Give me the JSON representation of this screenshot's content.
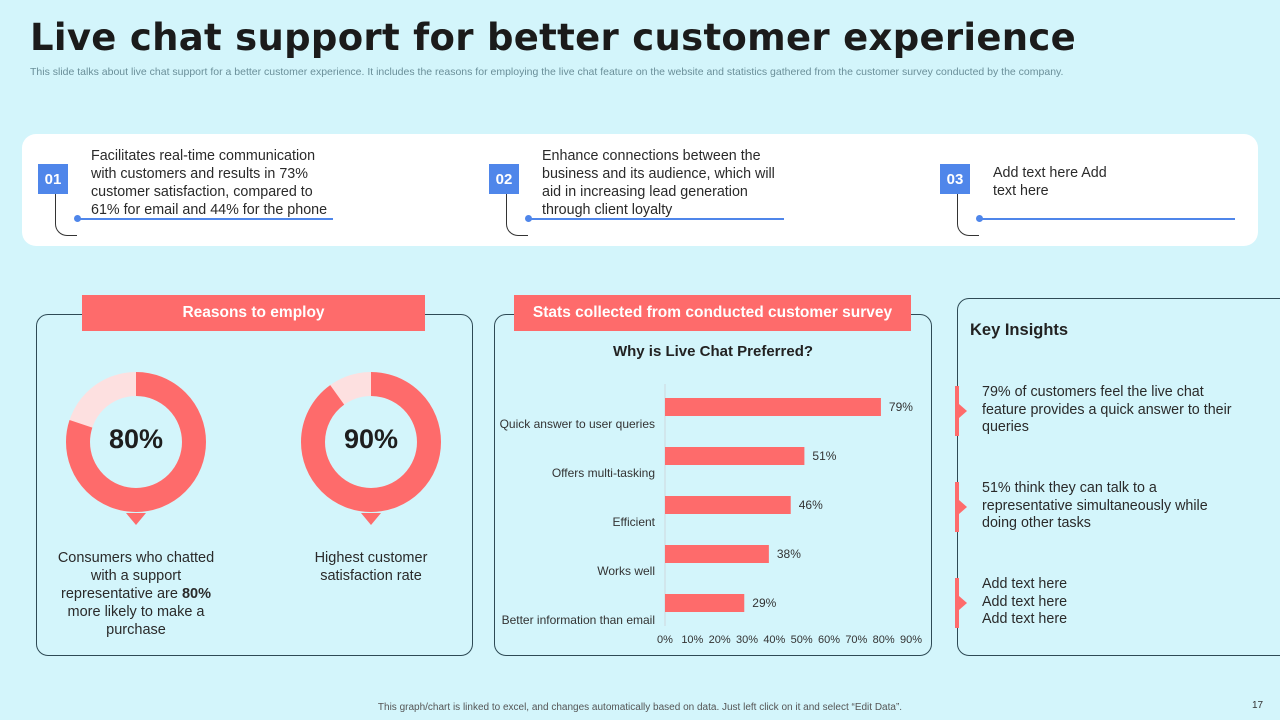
{
  "title": "Live chat support for better customer experience",
  "subtitle": "This slide talks about live chat support for a better customer experience. It includes the reasons for employing the live chat feature on the website and statistics gathered from the customer survey conducted by the company.",
  "steps": [
    {
      "num": "01",
      "text": "Facilitates real-time communication with customers and results in 73% customer satisfaction, compared to 61% for email and 44% for the phone"
    },
    {
      "num": "02",
      "text": "Enhance connections between the business and its audience, which will aid in increasing lead generation through client loyalty"
    },
    {
      "num": "03",
      "text": "Add text here Add text here"
    }
  ],
  "reasons": {
    "heading": "Reasons to employ",
    "donuts": [
      {
        "label": "80%",
        "value": 80,
        "desc_before": "Consumers who chatted with a support representative are ",
        "desc_bold": "80%",
        "desc_after": " more likely to make a purchase"
      },
      {
        "label": "90%",
        "value": 90,
        "desc": "Highest customer satisfaction rate"
      }
    ]
  },
  "stats": {
    "heading": "Stats collected from conducted customer survey"
  },
  "chart_data": {
    "type": "bar",
    "orientation": "horizontal",
    "title": "Why is Live Chat Preferred?",
    "categories": [
      "Quick answer to user queries",
      "Offers multi-tasking",
      "Efficient",
      "Works well",
      "Better information than email"
    ],
    "values": [
      79,
      51,
      46,
      38,
      29
    ],
    "value_labels": [
      "79%",
      "51%",
      "46%",
      "38%",
      "29%"
    ],
    "xlim": [
      0,
      90
    ],
    "xticks": [
      "0%",
      "10%",
      "20%",
      "30%",
      "40%",
      "50%",
      "60%",
      "70%",
      "80%",
      "90%"
    ],
    "bar_color": "#fe6b6b"
  },
  "insights": {
    "heading": "Key Insights",
    "items": [
      "79% of customers feel the live chat feature provides a quick answer to their queries",
      "51% think they can talk to a representative simultaneously while doing other tasks",
      "Add text here Add text here Add text here"
    ]
  },
  "footer": "This graph/chart is linked to excel, and changes automatically based on data. Just left click on it and select “Edit Data”.",
  "page_number": "17",
  "colors": {
    "accent_blue": "#4f86ea",
    "accent_red": "#fe6b6b",
    "donut_light": "#fde0e0",
    "background": "#d3f5fb"
  }
}
